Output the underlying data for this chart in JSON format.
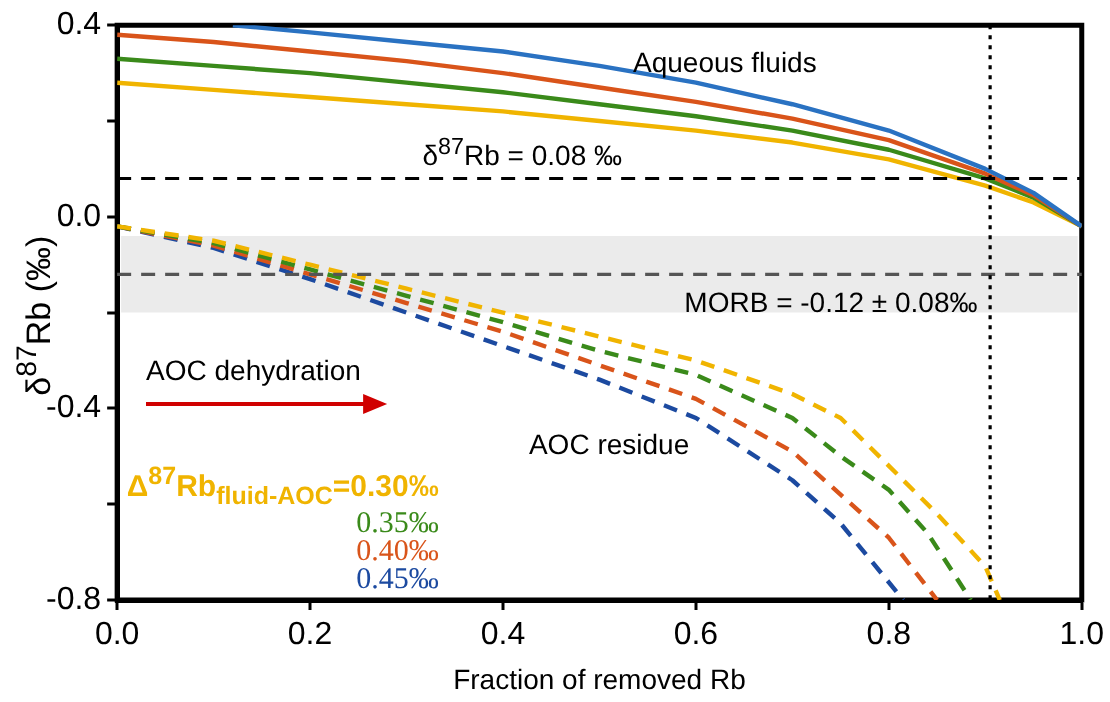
{
  "chart_data": {
    "type": "line",
    "xlabel": "Fraction of removed Rb",
    "ylabel": "δ$^{87}$Rb (‰)",
    "xlim": [
      0,
      1
    ],
    "xticks": [
      {
        "value": 0,
        "label": "0.0"
      },
      {
        "value": 0.2,
        "label": "0.2"
      },
      {
        "value": 0.4,
        "label": "0.4"
      },
      {
        "value": 0.6,
        "label": "0.6"
      },
      {
        "value": 0.8,
        "label": "0.8"
      },
      {
        "value": 1,
        "label": "1.0"
      }
    ],
    "ylim": [
      -0.8,
      0.4
    ],
    "yticks": [
      {
        "value": -0.8,
        "label": "-0.8"
      },
      {
        "value": -0.6,
        "label": null
      },
      {
        "value": -0.4,
        "label": "-0.4"
      },
      {
        "value": -0.2,
        "label": null
      },
      {
        "value": 0,
        "label": "0.0"
      },
      {
        "value": 0.2,
        "label": null
      },
      {
        "value": 0.4,
        "label": "0.4"
      }
    ],
    "grid": false,
    "marker": "none",
    "legend": "bottom left",
    "series": [
      {
        "color": "#2a72c2",
        "line_style": "solid",
        "x": [
          0.12,
          0.2,
          0.3,
          0.4,
          0.5,
          0.6,
          0.7,
          0.8,
          0.9,
          0.95,
          1.0
        ],
        "values": [
          0.4,
          0.385,
          0.365,
          0.345,
          0.315,
          0.28,
          0.235,
          0.18,
          0.1,
          0.05,
          -0.02
        ]
      },
      {
        "color": "#d9541a",
        "line_style": "solid",
        "x": [
          0,
          0.1,
          0.2,
          0.3,
          0.4,
          0.5,
          0.6,
          0.7,
          0.8,
          0.9,
          0.95,
          1.0
        ],
        "values": [
          0.38,
          0.365,
          0.345,
          0.325,
          0.3,
          0.27,
          0.24,
          0.205,
          0.16,
          0.09,
          0.045,
          -0.02
        ]
      },
      {
        "color": "#3a8a1a",
        "line_style": "solid",
        "x": [
          0,
          0.1,
          0.2,
          0.3,
          0.4,
          0.5,
          0.6,
          0.7,
          0.8,
          0.9,
          0.95,
          1.0
        ],
        "values": [
          0.33,
          0.315,
          0.3,
          0.28,
          0.26,
          0.235,
          0.21,
          0.18,
          0.14,
          0.08,
          0.04,
          -0.02
        ]
      },
      {
        "color": "#f0b400",
        "line_style": "solid",
        "x": [
          0,
          0.1,
          0.2,
          0.3,
          0.4,
          0.5,
          0.6,
          0.7,
          0.8,
          0.9,
          0.95,
          1.0
        ],
        "values": [
          0.28,
          0.265,
          0.25,
          0.235,
          0.22,
          0.2,
          0.18,
          0.155,
          0.12,
          0.065,
          0.03,
          -0.02
        ]
      },
      {
        "name": "Δ$^{87}$Rb$_{fluid-AOC}$=0.30‰",
        "color": "#f0b400",
        "line_style": "dashed",
        "x": [
          0,
          0.1,
          0.2,
          0.3,
          0.4,
          0.5,
          0.6,
          0.7,
          0.75,
          0.8,
          0.85,
          0.9,
          0.915
        ],
        "values": [
          -0.02,
          -0.05,
          -0.1,
          -0.15,
          -0.2,
          -0.25,
          -0.3,
          -0.37,
          -0.42,
          -0.52,
          -0.62,
          -0.73,
          -0.8
        ]
      },
      {
        "name": "0.35‰",
        "color": "#3a8a1a",
        "line_style": "dashed",
        "x": [
          0,
          0.1,
          0.2,
          0.3,
          0.4,
          0.5,
          0.6,
          0.7,
          0.75,
          0.8,
          0.84,
          0.885
        ],
        "values": [
          -0.02,
          -0.055,
          -0.11,
          -0.165,
          -0.22,
          -0.28,
          -0.33,
          -0.42,
          -0.5,
          -0.57,
          -0.66,
          -0.8
        ]
      },
      {
        "name": "0.40‰",
        "color": "#d9541a",
        "line_style": "dashed",
        "x": [
          0,
          0.1,
          0.2,
          0.3,
          0.4,
          0.5,
          0.6,
          0.7,
          0.75,
          0.8,
          0.85
        ],
        "values": [
          -0.02,
          -0.06,
          -0.12,
          -0.18,
          -0.24,
          -0.31,
          -0.38,
          -0.49,
          -0.58,
          -0.67,
          -0.8
        ]
      },
      {
        "name": "0.45‰",
        "color": "#1c4aa0",
        "line_style": "dashed",
        "x": [
          0,
          0.1,
          0.2,
          0.3,
          0.4,
          0.5,
          0.6,
          0.7,
          0.75,
          0.815
        ],
        "values": [
          -0.02,
          -0.065,
          -0.13,
          -0.2,
          -0.27,
          -0.34,
          -0.42,
          -0.55,
          -0.64,
          -0.8
        ]
      }
    ],
    "ref_lines": [
      {
        "axis": "y",
        "value": 0.08,
        "label": "δ$^{87}$Rb = 0.08 ‰",
        "line_style": "dashed",
        "color": "#000000"
      },
      {
        "axis": "y",
        "value": -0.12,
        "label": "MORB = -0.12 ± 0.08‰",
        "line_style": "dashed",
        "color": "#555555"
      },
      {
        "axis": "x",
        "value": 0.905,
        "line_style": "dotted",
        "color": "#000000"
      }
    ],
    "bands": [
      {
        "axis": "y",
        "from": -0.2,
        "to": -0.04,
        "color": "#ebebeb"
      }
    ],
    "annotations": [
      "Aqueous fluids",
      "AOC residue",
      "AOC dehydration"
    ]
  }
}
